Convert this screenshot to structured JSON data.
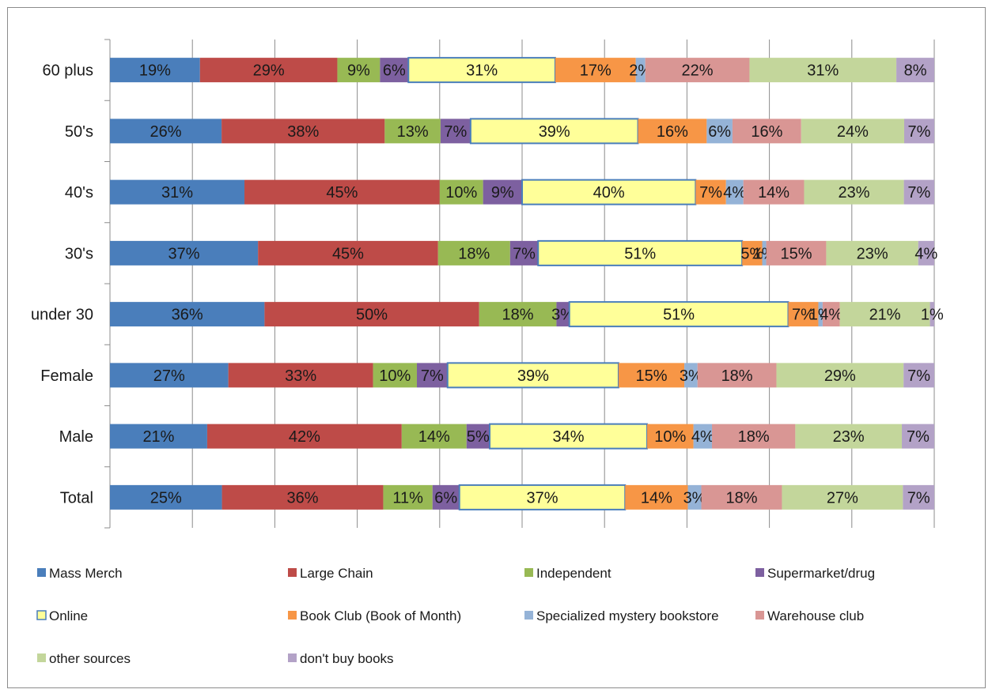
{
  "chart_data": {
    "type": "bar",
    "orientation": "horizontal",
    "stacked": true,
    "grid": true,
    "legend_position": "bottom",
    "categories": [
      "60 plus",
      "50's",
      "40's",
      "30's",
      "under 30",
      "Female",
      "Male",
      "Total"
    ],
    "series": [
      {
        "name": "Mass Merch",
        "color": "#4a7ebb",
        "values": [
          19,
          26,
          31,
          37,
          36,
          27,
          21,
          25
        ]
      },
      {
        "name": "Large Chain",
        "color": "#be4b48",
        "values": [
          29,
          38,
          45,
          45,
          50,
          33,
          42,
          36
        ]
      },
      {
        "name": "Independent",
        "color": "#98b954",
        "values": [
          9,
          13,
          10,
          18,
          18,
          10,
          14,
          11
        ]
      },
      {
        "name": "Supermarket/drug",
        "color": "#7d60a0",
        "values": [
          6,
          7,
          9,
          7,
          3,
          7,
          5,
          6
        ]
      },
      {
        "name": "Online",
        "color": "#ffff99",
        "border": "#4a7ebb",
        "values": [
          31,
          39,
          40,
          51,
          51,
          39,
          34,
          37
        ]
      },
      {
        "name": "Book Club (Book of Month)",
        "color": "#f79646",
        "values": [
          17,
          16,
          7,
          5,
          7,
          15,
          10,
          14
        ]
      },
      {
        "name": "Specialized mystery bookstore",
        "color": "#95b3d7",
        "values": [
          2,
          6,
          4,
          1,
          1,
          3,
          4,
          3
        ]
      },
      {
        "name": "Warehouse club",
        "color": "#d99694",
        "values": [
          22,
          16,
          14,
          15,
          4,
          18,
          18,
          18
        ]
      },
      {
        "name": "other sources",
        "color": "#c3d69b",
        "values": [
          31,
          24,
          23,
          23,
          21,
          29,
          23,
          27
        ]
      },
      {
        "name": "don't buy books",
        "color": "#b3a2c7",
        "values": [
          8,
          7,
          7,
          4,
          1,
          7,
          7,
          7
        ]
      }
    ],
    "value_suffix": "%"
  }
}
